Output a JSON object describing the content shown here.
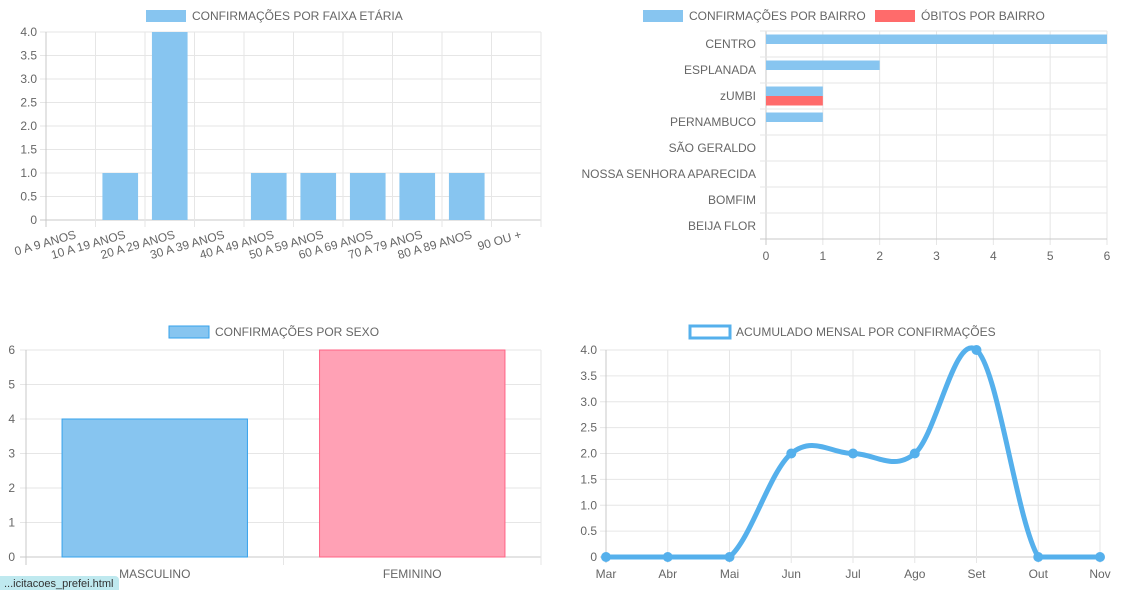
{
  "chart_data": [
    {
      "type": "bar",
      "legend_position": "top",
      "series": [
        {
          "name": "CONFIRMAÇÕES POR FAIXA ETÁRIA",
          "color": "#87c5f0",
          "values": [
            0,
            1,
            4,
            0,
            1,
            1,
            1,
            1,
            1,
            0
          ]
        }
      ],
      "categories": [
        "0 A 9 ANOS",
        "10 A 19 ANOS",
        "20 A 29 ANOS",
        "30 A 39 ANOS",
        "40 A 49 ANOS",
        "50 A 59 ANOS",
        "60 A 69 ANOS",
        "70 A 79 ANOS",
        "80 A 89 ANOS",
        "90  OU +"
      ],
      "y_ticks": [
        "0",
        "0.5",
        "1.0",
        "1.5",
        "2.0",
        "2.5",
        "3.0",
        "3.5",
        "4.0"
      ],
      "ylim": [
        0,
        4
      ],
      "grid": true
    },
    {
      "type": "bar",
      "orientation": "horizontal",
      "legend_position": "top",
      "categories": [
        "CENTRO",
        "ESPLANADA",
        "zUMBI",
        "PERNAMBUCO",
        "SÃO GERALDO",
        "NOSSA SENHORA APARECIDA",
        "BOMFIM",
        "BEIJA FLOR"
      ],
      "series": [
        {
          "name": "CONFIRMAÇÕES POR BAIRRO",
          "color": "#87c5f0",
          "values": [
            6,
            2,
            1,
            1,
            0,
            0,
            0,
            0
          ]
        },
        {
          "name": "ÓBITOS POR BAIRRO",
          "color": "#ff6b6b",
          "values": [
            0,
            0,
            1,
            0,
            0,
            0,
            0,
            0
          ]
        }
      ],
      "x_ticks": [
        "0",
        "1",
        "2",
        "3",
        "4",
        "5",
        "6"
      ],
      "xlim": [
        0,
        6
      ],
      "grid": true
    },
    {
      "type": "bar",
      "legend_position": "top",
      "series": [
        {
          "name": "CONFIRMAÇÕES POR SEXO",
          "color": "#87c5f0",
          "values": [
            4,
            6
          ]
        }
      ],
      "categories": [
        "MASCULINO",
        "FEMININO"
      ],
      "bar_colors": [
        "#87c5f0",
        "#ffa1b5"
      ],
      "bar_borders": [
        "#36a2eb",
        "#ff6384"
      ],
      "y_ticks": [
        "0",
        "1",
        "2",
        "3",
        "4",
        "5",
        "6"
      ],
      "ylim": [
        0,
        6
      ],
      "grid": true
    },
    {
      "type": "line",
      "legend_position": "top",
      "series": [
        {
          "name": "ACUMULADO MENSAL POR CONFIRMAÇÕES",
          "color": "#55b0ec",
          "values": [
            0,
            0,
            0,
            2,
            2,
            2,
            4,
            0,
            0
          ]
        }
      ],
      "categories": [
        "Mar",
        "Abr",
        "Mai",
        "Jun",
        "Jul",
        "Ago",
        "Set",
        "Out",
        "Nov"
      ],
      "y_ticks": [
        "0",
        "0.5",
        "1.0",
        "1.5",
        "2.0",
        "2.5",
        "3.0",
        "3.5",
        "4.0"
      ],
      "ylim": [
        0,
        4
      ],
      "grid": true
    }
  ],
  "status_bar": {
    "url_fragment": "...icitacoes_prefei.html"
  }
}
